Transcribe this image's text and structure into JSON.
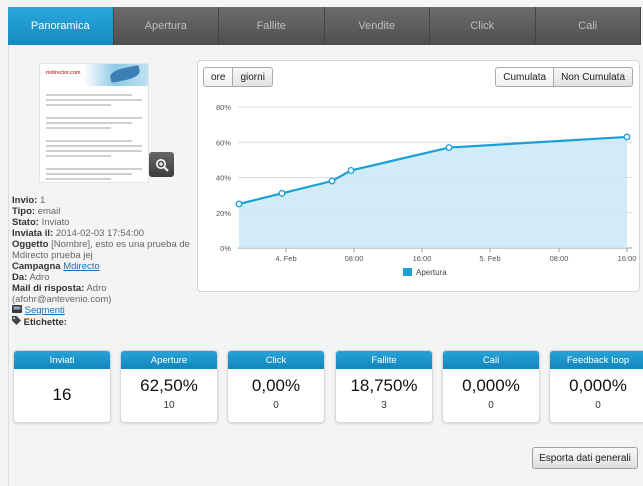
{
  "tabs": [
    {
      "label": "Panoramica",
      "active": true
    },
    {
      "label": "Apertura",
      "active": false
    },
    {
      "label": "Fallite",
      "active": false
    },
    {
      "label": "Vendite",
      "active": false
    },
    {
      "label": "Click",
      "active": false
    },
    {
      "label": "Cali",
      "active": false
    }
  ],
  "preview": {
    "logo_text": "mdirector.com",
    "zoom_icon": "zoom-in-icon"
  },
  "info": {
    "invio_label": "Invio:",
    "invio_value": "1",
    "tipo_label": "Tipo:",
    "tipo_value": "email",
    "stato_label": "Stato:",
    "stato_value": "Inviato",
    "inviata_label": "Inviata il:",
    "inviata_value": "2014-02-03 17:54:00",
    "oggetto_label": "Oggetto",
    "oggetto_value": "[Nombre], esto es una prueba de Mdirecto prueba jej",
    "campagna_label": "Campagna",
    "campagna_value": "Mdirecto",
    "da_label": "Da:",
    "da_value": "Adro",
    "mail_label": "Mail di risposta:",
    "mail_value": "Adro (afohr@antevenio.com)",
    "segmenti_label": "Segmenti",
    "etichette_label": "Etichette:"
  },
  "chart_controls": {
    "ore": "ore",
    "giorni": "giorni",
    "cumulata": "Cumulata",
    "non_cumulata": "Non Cumulata"
  },
  "chart_data": {
    "type": "area",
    "series": [
      {
        "name": "Apertura",
        "x": [
          "03-02 17:54",
          "03-02 20:00",
          "04-02 04:00",
          "04-02 06:00",
          "04-02 14:00",
          "05-02 17:00"
        ],
        "values": [
          25,
          31,
          38,
          44,
          57,
          63
        ]
      }
    ],
    "y_ticks": [
      "0%",
      "20%",
      "40%",
      "60%",
      "80%"
    ],
    "x_ticks": [
      "4. Feb",
      "08:00",
      "16:00",
      "5. Feb",
      "08:00",
      "16:00"
    ],
    "ylim": [
      0,
      80
    ],
    "grid": true,
    "legend": "bottom",
    "color": "#1a9fd6",
    "fill": "#c9e9f6"
  },
  "stats": [
    {
      "label": "Inviati",
      "value": "16",
      "count": ""
    },
    {
      "label": "Aperture",
      "value": "62,50%",
      "count": "10"
    },
    {
      "label": "Click",
      "value": "0,00%",
      "count": "0"
    },
    {
      "label": "Fallite",
      "value": "18,750%",
      "count": "3"
    },
    {
      "label": "Cali",
      "value": "0,000%",
      "count": "0"
    },
    {
      "label": "Feedback loop",
      "value": "0,000%",
      "count": "0"
    }
  ],
  "export_label": "Esporta dati generali"
}
